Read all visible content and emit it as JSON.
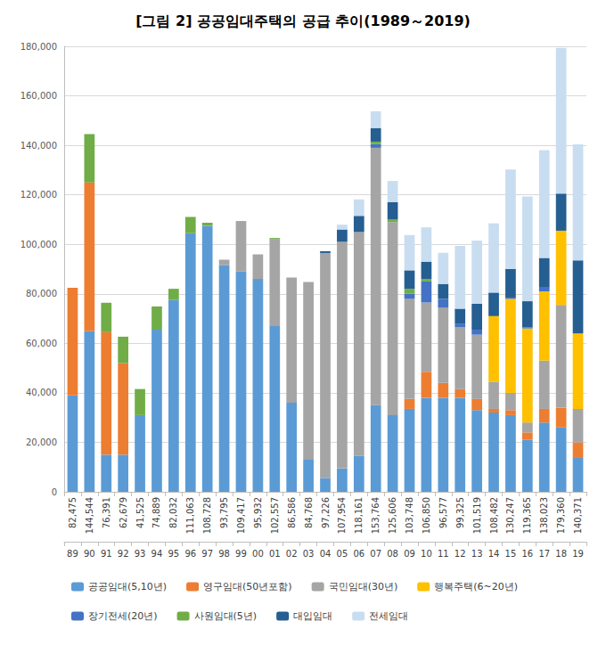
{
  "chart_data": {
    "type": "bar",
    "title": "[그림 2] 공공임대주택의 공급 추이(1989～2019)",
    "stacked": true,
    "grid": true,
    "legend": "bottom",
    "categories": [
      "89",
      "90",
      "91",
      "92",
      "93",
      "94",
      "95",
      "96",
      "97",
      "98",
      "99",
      "00",
      "01",
      "02",
      "03",
      "04",
      "05",
      "06",
      "07",
      "08",
      "09",
      "10",
      "11",
      "12",
      "13",
      "14",
      "15",
      "16",
      "17",
      "18",
      "19"
    ],
    "totals": [
      {
        "value": 82475,
        "label": "82,475"
      },
      {
        "value": 144544,
        "label": "144,544"
      },
      {
        "value": 76391,
        "label": "76,391"
      },
      {
        "value": 62679,
        "label": "62,679"
      },
      {
        "value": 41525,
        "label": "41,525"
      },
      {
        "value": 74889,
        "label": "74,889"
      },
      {
        "value": 82032,
        "label": "82,032"
      },
      {
        "value": 111063,
        "label": "111,063"
      },
      {
        "value": 108728,
        "label": "108,728"
      },
      {
        "value": 93795,
        "label": "93,795"
      },
      {
        "value": 109417,
        "label": "109,417"
      },
      {
        "value": 95932,
        "label": "95,932"
      },
      {
        "value": 102557,
        "label": "102,557"
      },
      {
        "value": 86586,
        "label": "86,586"
      },
      {
        "value": 84768,
        "label": "84,768"
      },
      {
        "value": 97226,
        "label": "97,226"
      },
      {
        "value": 107954,
        "label": "107,954"
      },
      {
        "value": 118161,
        "label": "118,161"
      },
      {
        "value": 153764,
        "label": "153,764"
      },
      {
        "value": 125606,
        "label": "125,606"
      },
      {
        "value": 103748,
        "label": "103,748"
      },
      {
        "value": 106850,
        "label": "106,850"
      },
      {
        "value": 96577,
        "label": "96,577"
      },
      {
        "value": 99325,
        "label": "99,325"
      },
      {
        "value": 101519,
        "label": "101,519"
      },
      {
        "value": 108482,
        "label": "108,482"
      },
      {
        "value": 130247,
        "label": "130,247"
      },
      {
        "value": 119365,
        "label": "119,365"
      },
      {
        "value": 138023,
        "label": "138,023"
      },
      {
        "value": 179360,
        "label": "179,360"
      },
      {
        "value": 140371,
        "label": "140,371"
      }
    ],
    "series": [
      {
        "name": "공공임대(5,10년)",
        "color": "#5b9bd5",
        "values": [
          39000,
          65000,
          15000,
          15000,
          31000,
          65500,
          77500,
          104500,
          107500,
          91500,
          89000,
          86000,
          67000,
          36000,
          13000,
          5500,
          9500,
          14500,
          35000,
          31000,
          33500,
          38000,
          38000,
          38000,
          33000,
          32000,
          31000,
          21000,
          28000,
          26000,
          14000
        ]
      },
      {
        "name": "영구임대(50년포함)",
        "color": "#ed7d31",
        "values": [
          43475,
          60000,
          49500,
          37000,
          0,
          0,
          0,
          0,
          0,
          0,
          0,
          0,
          0,
          0,
          0,
          0,
          0,
          0,
          0,
          0,
          4000,
          10500,
          6000,
          3500,
          4500,
          1500,
          2000,
          3000,
          5500,
          8000,
          6000
        ]
      },
      {
        "name": "국민임대(30년)",
        "color": "#a5a5a5",
        "values": [
          0,
          0,
          0,
          0,
          0,
          0,
          0,
          0,
          0,
          2295,
          20417,
          9932,
          35000,
          50586,
          71768,
          91000,
          91500,
          90500,
          104000,
          78000,
          40500,
          28000,
          30500,
          25000,
          26000,
          11000,
          7000,
          4000,
          19500,
          41500,
          13500
        ]
      },
      {
        "name": "행복주택(6~20년)",
        "color": "#ffc000",
        "values": [
          0,
          0,
          0,
          0,
          0,
          0,
          0,
          0,
          0,
          0,
          0,
          0,
          0,
          0,
          0,
          0,
          0,
          0,
          0,
          0,
          0,
          0,
          0,
          0,
          0,
          26500,
          38000,
          38000,
          28000,
          30000,
          30500
        ]
      },
      {
        "name": "장기전세(20년)",
        "color": "#4472c4",
        "values": [
          0,
          0,
          0,
          0,
          0,
          0,
          0,
          0,
          0,
          0,
          0,
          0,
          0,
          0,
          0,
          0,
          0,
          0,
          1500,
          0,
          2000,
          8500,
          3500,
          1500,
          2000,
          0,
          500,
          500,
          1500,
          0,
          0
        ]
      },
      {
        "name": "사원임대(5년)",
        "color": "#70ad47",
        "values": [
          0,
          19544,
          11891,
          10679,
          10525,
          9389,
          4532,
          6563,
          1228,
          0,
          0,
          0,
          557,
          0,
          0,
          0,
          0,
          0,
          1000,
          1000,
          2000,
          1000,
          0,
          0,
          0,
          0,
          0,
          0,
          0,
          0,
          0
        ]
      },
      {
        "name": "대입임대",
        "color": "#255e91",
        "values": [
          0,
          0,
          0,
          0,
          0,
          0,
          0,
          0,
          0,
          0,
          0,
          0,
          0,
          0,
          0,
          726,
          5000,
          6500,
          5500,
          7000,
          7500,
          7000,
          6000,
          6000,
          10500,
          9500,
          11500,
          10500,
          12000,
          15000,
          29500
        ]
      },
      {
        "name": "전세임대",
        "color": "#c9ddf1",
        "values": [
          0,
          0,
          0,
          0,
          0,
          0,
          0,
          0,
          0,
          0,
          0,
          0,
          0,
          0,
          0,
          0,
          1954,
          6661,
          6764,
          8606,
          14248,
          13850,
          12577,
          25325,
          25519,
          27982,
          40247,
          42365,
          43523,
          58860,
          46871
        ]
      }
    ],
    "ylim": [
      0,
      180000
    ],
    "yticks": [
      0,
      {
        "value": 20000,
        "label": "20,000"
      },
      {
        "value": 40000,
        "label": "40,000"
      },
      {
        "value": 60000,
        "label": "60,000"
      },
      {
        "value": 80000,
        "label": "80,000"
      },
      {
        "value": 100000,
        "label": "100,000"
      },
      {
        "value": 120000,
        "label": "120,000"
      },
      {
        "value": 140000,
        "label": "140,000"
      },
      {
        "value": 160000,
        "label": "160,000"
      },
      {
        "value": 180000,
        "label": "180,000"
      }
    ]
  }
}
